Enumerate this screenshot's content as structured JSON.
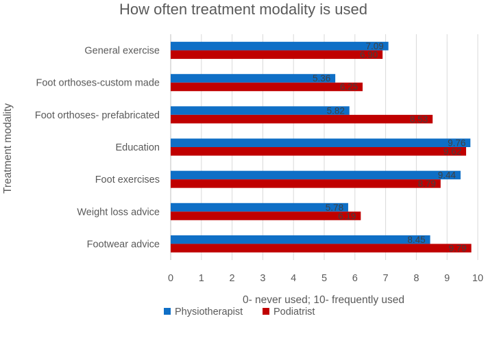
{
  "chart_data": {
    "type": "bar",
    "orientation": "horizontal",
    "title": "How often treatment modality is used",
    "xlabel": "0- never used; 10- frequently used",
    "ylabel": "Treatment modality",
    "xlim": [
      0,
      10
    ],
    "xticks": [
      0,
      1,
      2,
      3,
      4,
      5,
      6,
      7,
      8,
      9,
      10
    ],
    "grid": true,
    "legend": "bottom-left",
    "categories": [
      "General exercise",
      "Foot orthoses-custom made",
      "Foot orthoses- prefabricated",
      "Education",
      "Foot exercises",
      "Weight loss advice",
      "Footwear advice"
    ],
    "series": [
      {
        "name": "Physiotherapist",
        "color": "#0F6FC6",
        "values": [
          7.09,
          5.36,
          5.82,
          9.76,
          9.44,
          5.78,
          8.45
        ],
        "labels": [
          "7.09",
          "5.36",
          "5.82",
          "9.76",
          "9.44",
          "5.78",
          "8.45"
        ]
      },
      {
        "name": "Podiatrist",
        "color": "#C00000",
        "values": [
          6.9,
          6.25,
          8.53,
          9.62,
          8.79,
          6.19,
          9.79
        ],
        "labels": [
          "6.90",
          "6.25",
          "8.53",
          "9.62",
          "8.79",
          "6.19",
          "9.79"
        ]
      }
    ]
  }
}
